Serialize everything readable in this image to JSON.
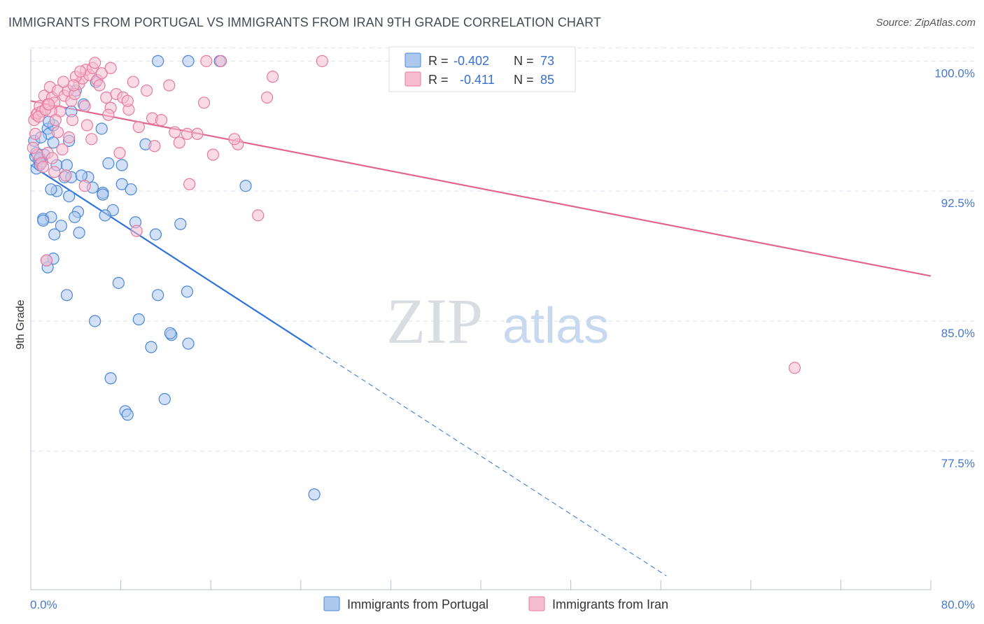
{
  "header": {
    "title": "IMMIGRANTS FROM PORTUGAL VS IMMIGRANTS FROM IRAN 9TH GRADE CORRELATION CHART",
    "source": "Source: ZipAtlas.com"
  },
  "watermark": {
    "zip": "ZIP",
    "atlas": "atlas"
  },
  "colors": {
    "portugal_fill": "#aec9ee",
    "portugal_stroke": "#4a86d8",
    "portugal_line": "#2f74d6",
    "iran_fill": "#f6bdd0",
    "iran_stroke": "#e8799f",
    "iran_line": "#e0668f",
    "grid": "#dde3ea",
    "tick_label": "#4a78c8"
  },
  "chart_data": {
    "type": "scatter",
    "title": "IMMIGRANTS FROM PORTUGAL VS IMMIGRANTS FROM IRAN 9TH GRADE CORRELATION CHART",
    "xlabel": "",
    "ylabel": "9th Grade",
    "xlim": [
      0,
      80
    ],
    "ylim": [
      69.5,
      100.7
    ],
    "x_tick_labels": {
      "min": "0.0%",
      "max": "80.0%"
    },
    "y_ticks": [
      {
        "value": 100.0,
        "label": "100.0%"
      },
      {
        "value": 92.5,
        "label": "92.5%"
      },
      {
        "value": 85.0,
        "label": "85.0%"
      },
      {
        "value": 77.5,
        "label": "77.5%"
      }
    ],
    "legend_stats": [
      {
        "series": "Immigrants from Portugal",
        "r_label": "R =",
        "r_value": "-0.402",
        "n_label": "N =",
        "n_value": "73"
      },
      {
        "series": "Immigrants from Iran",
        "r_label": "R =",
        "r_value": "-0.411",
        "n_label": "N =",
        "n_value": "85"
      }
    ],
    "series": [
      {
        "name": "Immigrants from Portugal",
        "color_key": "portugal",
        "trend": {
          "x0": 0.0,
          "y0": 94.0,
          "x1": 25.0,
          "y1": 83.5,
          "dash_x_end": 56.5,
          "dash_y_end": 70.3
        },
        "points": [
          [
            0.3,
            95.4
          ],
          [
            0.4,
            94.5
          ],
          [
            0.5,
            93.8
          ],
          [
            0.7,
            94.3
          ],
          [
            0.8,
            94.0
          ],
          [
            1.0,
            94.2
          ],
          [
            1.2,
            94.6
          ],
          [
            1.5,
            96.1
          ],
          [
            1.6,
            95.8
          ],
          [
            2.0,
            95.3
          ],
          [
            2.3,
            94.0
          ],
          [
            3.0,
            93.3
          ],
          [
            3.6,
            93.3
          ],
          [
            5.1,
            93.3
          ],
          [
            5.5,
            92.7
          ],
          [
            6.4,
            92.4
          ],
          [
            8.1,
            92.9
          ],
          [
            8.9,
            92.6
          ],
          [
            2.3,
            92.5
          ],
          [
            1.8,
            92.6
          ],
          [
            3.4,
            92.2
          ],
          [
            6.4,
            92.3
          ],
          [
            7.3,
            91.4
          ],
          [
            4.2,
            91.3
          ],
          [
            1.1,
            90.9
          ],
          [
            1.8,
            91.0
          ],
          [
            2.7,
            90.5
          ],
          [
            4.3,
            90.1
          ],
          [
            1.1,
            90.8
          ],
          [
            3.9,
            91.0
          ],
          [
            6.6,
            91.1
          ],
          [
            9.3,
            90.7
          ],
          [
            11.1,
            90.0
          ],
          [
            13.3,
            90.6
          ],
          [
            2.1,
            90.0
          ],
          [
            2.0,
            88.6
          ],
          [
            1.5,
            88.1
          ],
          [
            1.4,
            88.5
          ],
          [
            7.8,
            87.2
          ],
          [
            3.2,
            86.5
          ],
          [
            11.3,
            86.5
          ],
          [
            13.9,
            86.7
          ],
          [
            5.7,
            85.0
          ],
          [
            9.6,
            85.1
          ],
          [
            12.5,
            84.2
          ],
          [
            12.4,
            84.3
          ],
          [
            14.0,
            83.7
          ],
          [
            10.7,
            83.5
          ],
          [
            7.1,
            81.7
          ],
          [
            11.9,
            80.5
          ],
          [
            8.4,
            79.8
          ],
          [
            8.6,
            79.6
          ],
          [
            25.2,
            75.0
          ],
          [
            10.2,
            95.2
          ],
          [
            8.1,
            94.0
          ],
          [
            6.9,
            94.1
          ],
          [
            4.5,
            93.4
          ],
          [
            3.2,
            94.0
          ],
          [
            2.0,
            96.3
          ],
          [
            3.6,
            97.1
          ],
          [
            4.7,
            97.5
          ],
          [
            4.0,
            98.3
          ],
          [
            5.8,
            98.8
          ],
          [
            11.3,
            100.0
          ],
          [
            14.0,
            100.0
          ],
          [
            16.8,
            100.0
          ],
          [
            1.6,
            96.5
          ],
          [
            0.9,
            95.6
          ],
          [
            0.5,
            94.7
          ],
          [
            6.3,
            96.1
          ],
          [
            3.4,
            95.4
          ],
          [
            19.1,
            92.8
          ],
          [
            0.8,
            94.4
          ]
        ]
      },
      {
        "name": "Immigrants from Iran",
        "color_key": "iran",
        "trend": {
          "x0": 0.0,
          "y0": 97.7,
          "x1": 80.0,
          "y1": 87.6
        },
        "points": [
          [
            0.3,
            96.6
          ],
          [
            0.5,
            96.9
          ],
          [
            0.6,
            97.0
          ],
          [
            0.8,
            97.4
          ],
          [
            1.0,
            97.1
          ],
          [
            1.2,
            98.0
          ],
          [
            1.5,
            97.5
          ],
          [
            1.7,
            98.5
          ],
          [
            1.9,
            97.9
          ],
          [
            2.1,
            97.6
          ],
          [
            2.4,
            98.3
          ],
          [
            2.6,
            97.1
          ],
          [
            3.0,
            98.0
          ],
          [
            3.3,
            98.3
          ],
          [
            3.6,
            97.7
          ],
          [
            3.9,
            98.1
          ],
          [
            4.3,
            98.7
          ],
          [
            4.6,
            99.0
          ],
          [
            4.9,
            99.5
          ],
          [
            5.2,
            99.2
          ],
          [
            5.5,
            99.6
          ],
          [
            5.9,
            98.9
          ],
          [
            6.3,
            99.3
          ],
          [
            6.7,
            97.9
          ],
          [
            7.1,
            97.3
          ],
          [
            7.6,
            98.1
          ],
          [
            8.2,
            97.9
          ],
          [
            8.7,
            97.2
          ],
          [
            9.6,
            96.2
          ],
          [
            10.3,
            98.3
          ],
          [
            10.8,
            96.7
          ],
          [
            11.6,
            96.6
          ],
          [
            12.3,
            98.6
          ],
          [
            12.8,
            95.9
          ],
          [
            13.2,
            95.3
          ],
          [
            13.9,
            95.8
          ],
          [
            14.8,
            95.8
          ],
          [
            15.4,
            97.6
          ],
          [
            16.2,
            94.6
          ],
          [
            18.4,
            95.2
          ],
          [
            18.1,
            95.5
          ],
          [
            21.0,
            97.9
          ],
          [
            21.5,
            99.1
          ],
          [
            15.6,
            100.0
          ],
          [
            16.9,
            100.0
          ],
          [
            25.9,
            100.0
          ],
          [
            0.4,
            95.8
          ],
          [
            0.6,
            94.6
          ],
          [
            0.9,
            94.1
          ],
          [
            1.5,
            94.7
          ],
          [
            2.8,
            94.9
          ],
          [
            3.4,
            95.6
          ],
          [
            5.4,
            95.5
          ],
          [
            7.9,
            94.7
          ],
          [
            1.8,
            97.1
          ],
          [
            2.2,
            96.6
          ],
          [
            3.7,
            96.6
          ],
          [
            5.0,
            96.3
          ],
          [
            6.9,
            96.9
          ],
          [
            9.1,
            98.8
          ],
          [
            11.0,
            95.1
          ],
          [
            0.7,
            96.8
          ],
          [
            1.3,
            97.2
          ],
          [
            4.0,
            99.1
          ],
          [
            4.4,
            99.4
          ],
          [
            5.7,
            99.9
          ],
          [
            7.1,
            99.6
          ],
          [
            2.9,
            98.8
          ],
          [
            3.8,
            98.6
          ],
          [
            0.2,
            95.0
          ],
          [
            14.1,
            92.9
          ],
          [
            20.2,
            91.1
          ],
          [
            9.4,
            90.2
          ],
          [
            1.4,
            88.5
          ],
          [
            67.9,
            82.3
          ],
          [
            4.8,
            92.8
          ],
          [
            2.1,
            93.6
          ],
          [
            3.1,
            93.4
          ],
          [
            1.1,
            93.9
          ],
          [
            1.9,
            94.4
          ],
          [
            2.4,
            95.9
          ],
          [
            8.6,
            97.7
          ],
          [
            4.8,
            97.4
          ],
          [
            1.6,
            97.5
          ],
          [
            6.1,
            98.6
          ]
        ]
      }
    ]
  },
  "legend": {
    "items": [
      {
        "label": "Immigrants from Portugal"
      },
      {
        "label": "Immigrants from Iran"
      }
    ]
  }
}
